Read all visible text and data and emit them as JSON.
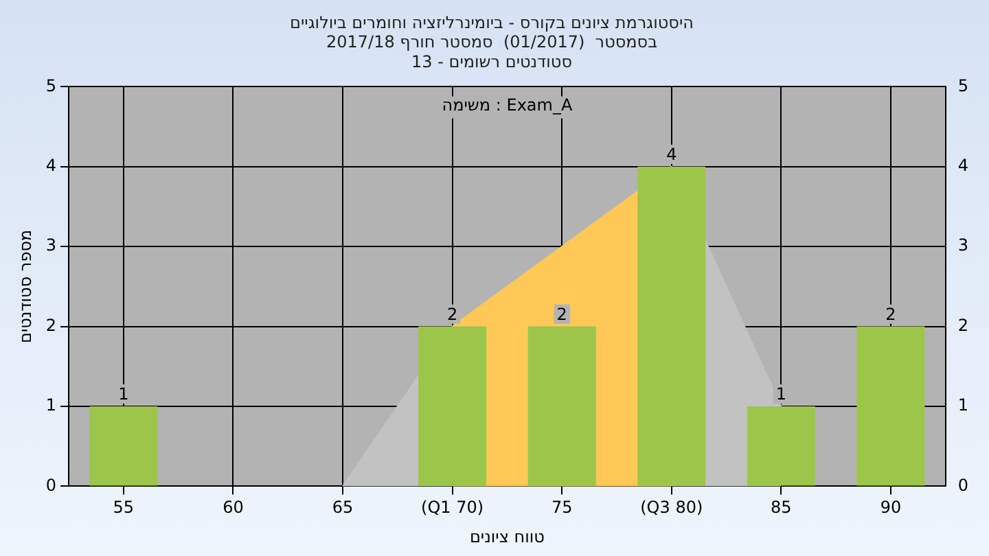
{
  "chart_data": {
    "type": "bar",
    "title": "היסטוגרמת ציונים בקורס - ביומינרליזציה וחומרים ביולוגיים\nבסמסטר  (01/2017)  סמסטר חורף 2017/18\nסטודנטים רשומים - 13",
    "xlabel": "טווח ציונים",
    "ylabel": "מספר סטודנטים",
    "categories": [
      "55",
      "60",
      "65",
      "(Q1 70)",
      "75",
      "(Q3 80)",
      "85",
      "90"
    ],
    "series": [
      {
        "color": "#9cc64a",
        "values": [
          1,
          0,
          0,
          2,
          2,
          4,
          1,
          2
        ],
        "value_labels": [
          "1",
          null,
          null,
          "2",
          "2",
          "4",
          "1",
          "2"
        ]
      },
      {
        "type": "area",
        "color": "#c2c2c2",
        "values": [
          null,
          null,
          0,
          2,
          3,
          4,
          1,
          null
        ]
      },
      {
        "type": "area",
        "color": "#ffc857",
        "values": [
          null,
          null,
          null,
          2,
          3,
          4,
          null,
          null
        ]
      }
    ],
    "ylim": [
      0,
      5
    ],
    "yticks": [
      0,
      1,
      2,
      3,
      4,
      5
    ],
    "y2lim": [
      0,
      5
    ],
    "y2ticks": [
      0,
      1,
      2,
      3,
      4,
      5
    ],
    "grid": true,
    "annotations": [
      "משימה : Exam_A"
    ]
  }
}
